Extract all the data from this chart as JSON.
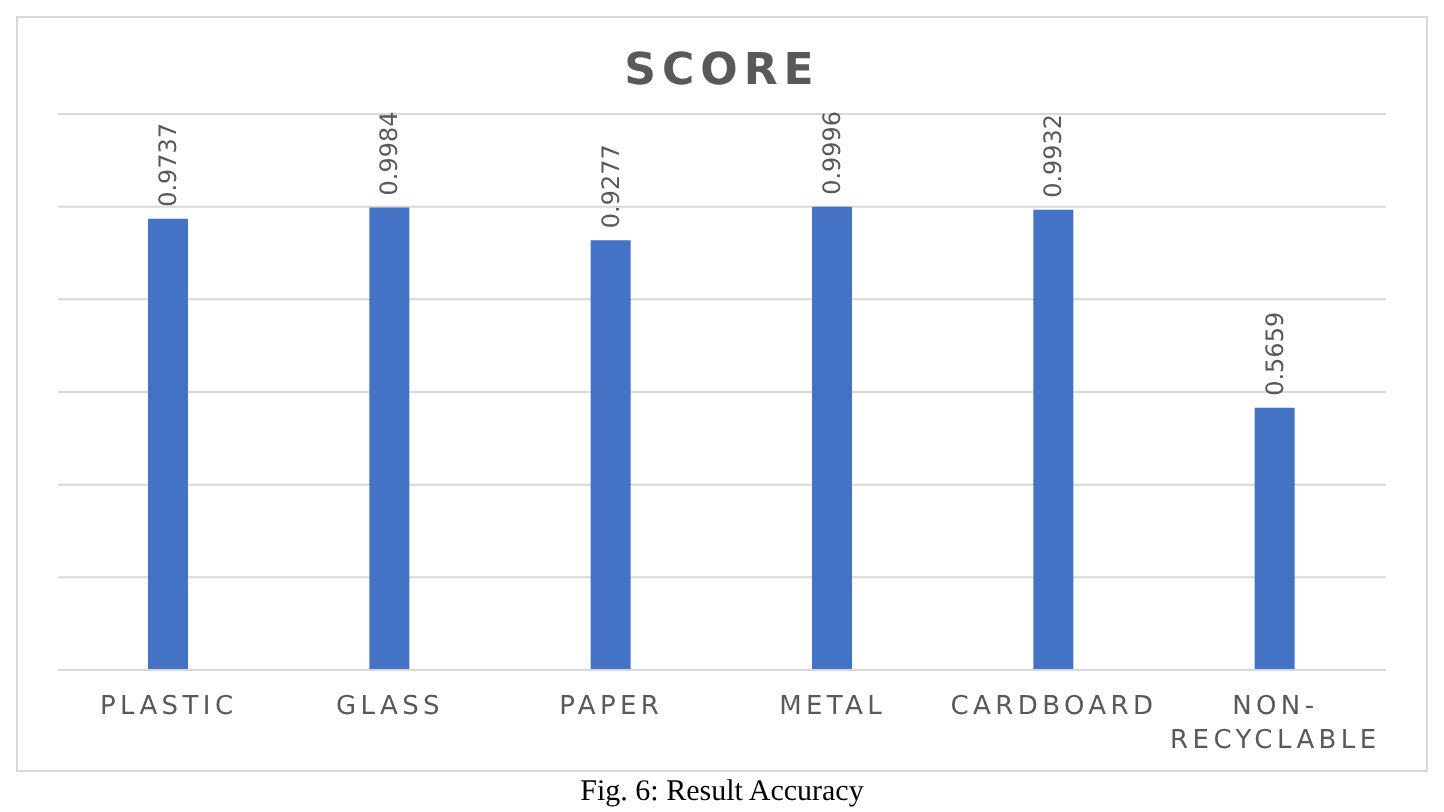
{
  "chart_data": {
    "type": "bar",
    "title": "SCORE",
    "categories": [
      "PLASTIC",
      "GLASS",
      "PAPER",
      "METAL",
      "CARDBOARD",
      "NON-RECYCLABLE"
    ],
    "values": [
      0.9737,
      0.9984,
      0.9277,
      0.9996,
      0.9932,
      0.5659
    ],
    "color": "#4472c4",
    "tick_labels": "x",
    "grid": "y",
    "data_labels": true,
    "annotations": [
      "Fig. 6: Result Accuracy"
    ]
  }
}
